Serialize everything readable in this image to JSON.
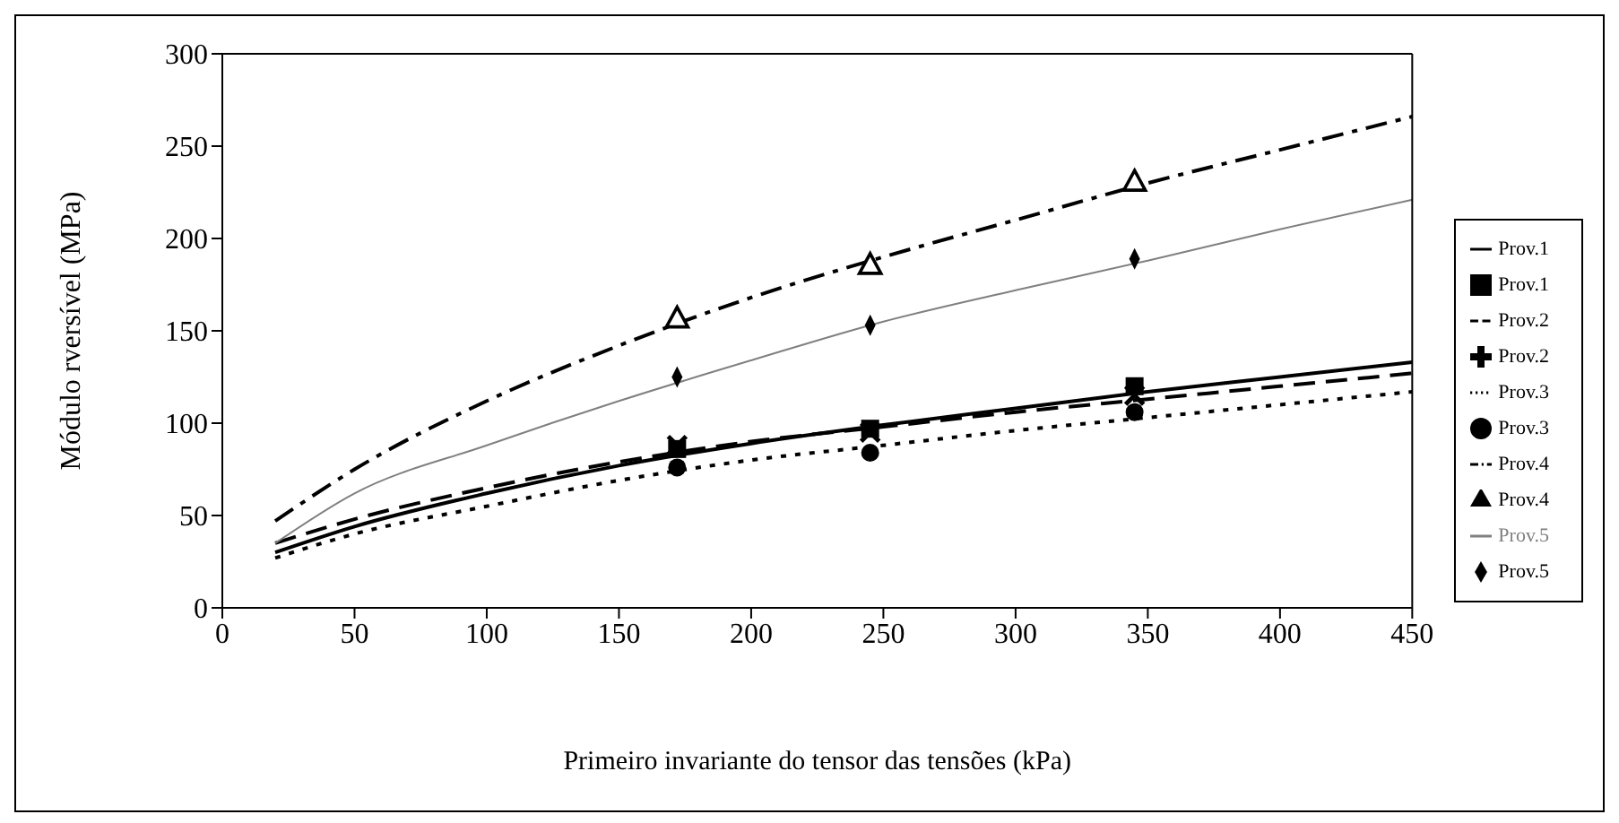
{
  "chart_data": {
    "type": "line",
    "xlabel": "Primeiro invariante do tensor das tensões (kPa)",
    "ylabel": "Módulo rversível (MPa)",
    "xlim": [
      0,
      450
    ],
    "xticks": [
      0,
      50,
      100,
      150,
      200,
      250,
      300,
      350,
      400,
      450
    ],
    "ylim": [
      0,
      300
    ],
    "yticks": [
      0,
      50,
      100,
      150,
      200,
      250,
      300
    ],
    "legend": "right",
    "series": [
      {
        "name": "Prov.1",
        "color": "#000000",
        "line_style": "solid",
        "x": [
          20,
          50,
          100,
          150,
          200,
          250,
          300,
          350,
          400,
          450
        ],
        "values": [
          30,
          44,
          62,
          77,
          89,
          99,
          108,
          117,
          125,
          133
        ]
      },
      {
        "name": "Prov.1",
        "type": "scatter",
        "color": "#000000",
        "marker": "square",
        "x": [
          172,
          245,
          345
        ],
        "values": [
          86,
          97,
          120
        ]
      },
      {
        "name": "Prov.2",
        "color": "#000000",
        "line_style": "dashed",
        "x": [
          20,
          50,
          100,
          150,
          200,
          250,
          300,
          350,
          400,
          450
        ],
        "values": [
          35,
          48,
          65,
          79,
          90,
          98,
          106,
          113,
          120,
          127
        ]
      },
      {
        "name": "Prov.2",
        "type": "scatter",
        "color": "#000000",
        "marker": "cross",
        "x": [
          172,
          245,
          345
        ],
        "values": [
          88,
          95,
          115
        ]
      },
      {
        "name": "Prov.3",
        "color": "#000000",
        "line_style": "dotted",
        "x": [
          20,
          50,
          100,
          150,
          200,
          250,
          300,
          350,
          400,
          450
        ],
        "values": [
          27,
          40,
          55,
          69,
          80,
          88,
          96,
          103,
          110,
          117
        ]
      },
      {
        "name": "Prov.3",
        "type": "scatter",
        "color": "#000000",
        "marker": "circle",
        "x": [
          172,
          245,
          345
        ],
        "values": [
          76,
          84,
          106
        ]
      },
      {
        "name": "Prov.4",
        "color": "#000000",
        "line_style": "dashdot",
        "x": [
          20,
          50,
          100,
          150,
          200,
          250,
          300,
          350,
          400,
          450
        ],
        "values": [
          47,
          75,
          112,
          142,
          168,
          190,
          210,
          230,
          248,
          266
        ]
      },
      {
        "name": "Prov.4",
        "type": "scatter",
        "color": "#000000",
        "marker": "triangle",
        "x": [
          172,
          245,
          345
        ],
        "values": [
          157,
          186,
          231
        ]
      },
      {
        "name": "Prov.5",
        "color": "#808080",
        "line_style": "solid",
        "x": [
          20,
          50,
          100,
          150,
          200,
          250,
          300,
          350,
          400,
          450
        ],
        "values": [
          35,
          62,
          88,
          112,
          134,
          155,
          172,
          188,
          205,
          221
        ]
      },
      {
        "name": "Prov.5",
        "type": "scatter",
        "color": "#000000",
        "marker": "diamond",
        "x": [
          172,
          245,
          345
        ],
        "values": [
          125,
          153,
          189
        ]
      }
    ]
  }
}
